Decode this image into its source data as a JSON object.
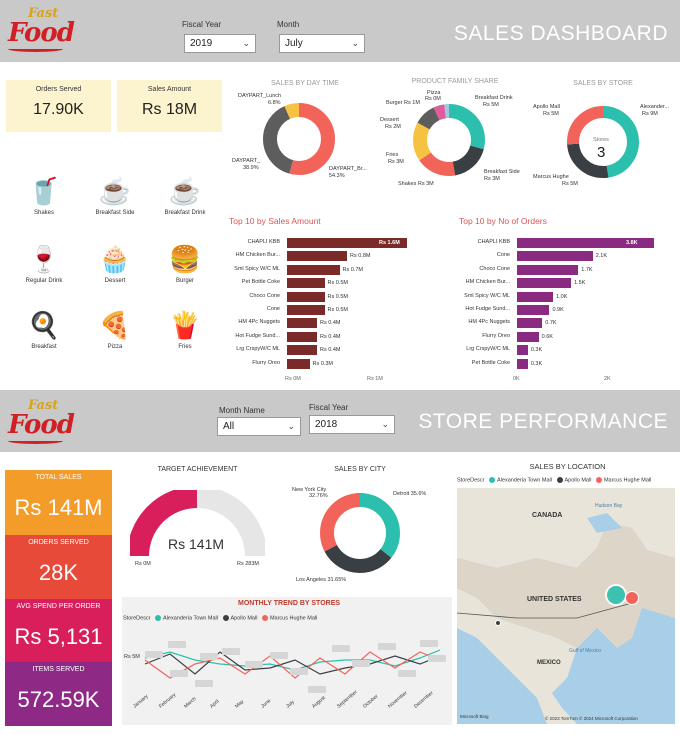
{
  "logo": {
    "fast": "Fast",
    "food": "Food"
  },
  "dashboard": {
    "fiscal_year_label": "Fiscal Year",
    "fiscal_year_value": "2019",
    "month_label": "Month",
    "month_value": "July",
    "title": "SALES DASHBOARD",
    "kpis": [
      {
        "label": "Orders Served",
        "value": "17.90K"
      },
      {
        "label": "Sales Amount",
        "value": "Rs 18M"
      }
    ],
    "categories": [
      "Shakes",
      "Breakfast Side",
      "Breakfast Drink",
      "Regular Drink",
      "Dessert",
      "Burger",
      "Breakfast",
      "Pizza",
      "Fries"
    ],
    "daytime": {
      "title": "SALES BY DAY TIME",
      "lunch": "DAYPART_Lunch",
      "lunch_pct": "6.8%",
      "daypart": "DAYPART_",
      "daypart_pct": "38.9%",
      "br": "DAYPART_Br...",
      "br_pct": "54.3%"
    },
    "family": {
      "title": "PRODUCT FAMILY SHARE",
      "pizza": "Pizza",
      "pizza_v": "Rs 0M",
      "burger": "Burger Rs 1M",
      "bdrink": "Breakfast Drink",
      "bdrink_v": "Rs 5M",
      "dessert": "Dessert",
      "dessert_v": "Rs 2M",
      "fries": "Fries",
      "fries_v": "Rs 3M",
      "bside": "Breakfast Side",
      "bside_v": "Rs 3M",
      "shakes": "Shakes Rs 3M"
    },
    "store": {
      "title": "SALES BY STORE",
      "apollo": "Apollo Mall",
      "apollo_v": "Rs 5M",
      "alex": "Alexander...",
      "alex_v": "Rs 9M",
      "marcus": "Marcus Hughe",
      "marcus_v": "Rs 5M",
      "center_lbl": "Stores",
      "center_val": "3"
    },
    "top_sales": {
      "title": "Top 10 by Sales Amount",
      "axis": [
        "Rs 0M",
        "Rs 1M"
      ],
      "labels": [
        "CHAPLI KBB",
        "HM Chicken Bur...",
        "Sml Spicy W/C ML",
        "Pet Bottle Coke",
        "Choco Cone",
        "Cone",
        "HM 4Pc Nuggets",
        "Hot Fudge Sund...",
        "Lrg CrspyW/C ML",
        "Flurry Oreo"
      ],
      "value_labels": [
        "Rs 1.6M",
        "Rs 0.8M",
        "Rs 0.7M",
        "Rs 0.5M",
        "Rs 0.5M",
        "Rs 0.5M",
        "Rs 0.4M",
        "Rs 0.4M",
        "Rs 0.4M",
        "Rs 0.3M"
      ]
    },
    "top_orders": {
      "title": "Top 10 by No of Orders",
      "axis": [
        "0K",
        "2K"
      ],
      "labels": [
        "CHAPLI KBB",
        "Cone",
        "Choco Cone",
        "HM Chicken Bur...",
        "Sml Spicy W/C ML",
        "Hot Fudge Sund...",
        "HM 4Pc Nuggets",
        "Flurry Oreo",
        "Lrg CrspyW/C ML",
        "Pet Bottle Coke"
      ],
      "value_labels": [
        "3.8K",
        "2.1K",
        "1.7K",
        "1.5K",
        "1.0K",
        "0.9K",
        "0.7K",
        "0.6K",
        "0.3K",
        "0.3K"
      ]
    }
  },
  "store_perf": {
    "month_label": "Month Name",
    "month_value": "All",
    "fiscal_year_label": "Fiscal Year",
    "fiscal_year_value": "2018",
    "title": "STORE PERFORMANCE",
    "kpis": [
      {
        "label": "TOTAL SALES",
        "value": "Rs 141M",
        "color": "#f39c2a"
      },
      {
        "label": "ORDERS SERVED",
        "value": "28K",
        "color": "#e84a3a"
      },
      {
        "label": "AVG SPEND PER ORDER",
        "value": "Rs 5,131",
        "color": "#d81f5b"
      },
      {
        "label": "ITEMS SERVED",
        "value": "572.59K",
        "color": "#8e2a86"
      }
    ],
    "target": {
      "title": "TARGET ACHIEVEMENT",
      "value": "Rs 141M",
      "min": "Rs 0M",
      "max": "Rs 283M"
    },
    "city": {
      "title": "SALES BY CITY",
      "ny": "New York City",
      "ny_pct": "32.76%",
      "detroit": "Detroit 35.6%",
      "la": "Los Angeles 31.65%"
    },
    "trend": {
      "title": "MONTHLY TREND BY STORES",
      "legend_title": "StoreDescr",
      "s1": "Alexanderia Town Mall",
      "s2": "Apollo Mall",
      "s3": "Marcus Hughe Mall",
      "yaxis": "Rs 5M",
      "months": [
        "January",
        "February",
        "March",
        "April",
        "May",
        "June",
        "July",
        "August",
        "September",
        "October",
        "November",
        "December"
      ]
    },
    "location": {
      "title": "SALES BY LOCATION",
      "legend_title": "StoreDescr",
      "s1": "Alexanderia Town Mall",
      "s2": "Apollo Mall",
      "s3": "Marcus Hughe Mall",
      "canada": "CANADA",
      "us": "UNITED STATES",
      "mexico": "MEXICO",
      "hudson": "Hudson Bay",
      "gulf": "Gulf of Mexico",
      "copyright": "© 2023 TomTom  © 2024 Microsoft Corporation",
      "bing": "Microsoft Bing"
    }
  },
  "colors": {
    "maroon": "#7b2a2a",
    "purple": "#8a2a80",
    "teal": "#2cbfae",
    "dark": "#3a3f44",
    "coral": "#f2645a",
    "yellow": "#f5c242"
  }
}
